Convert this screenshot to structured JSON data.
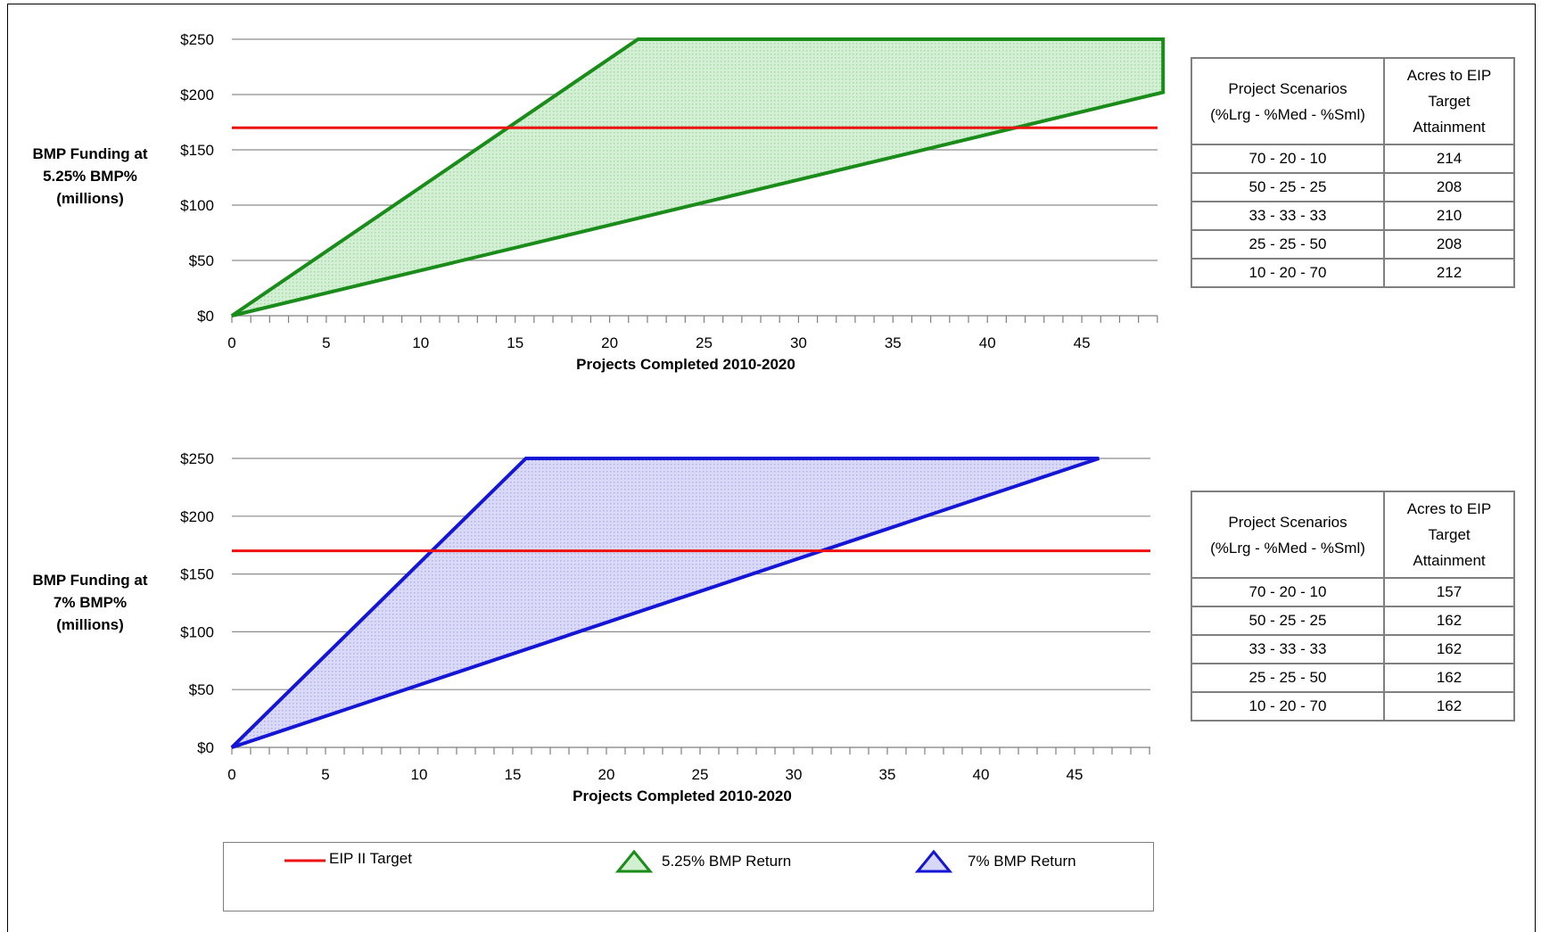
{
  "chart_data": [
    {
      "type": "area",
      "ylabel_lines": [
        "BMP Funding at",
        "5.25% BMP%",
        "(millions)"
      ],
      "xlabel": "Projects Completed 2010-2020",
      "y_ticks": [
        "$0",
        "$50",
        "$100",
        "$150",
        "$200",
        "$250"
      ],
      "x_ticks": [
        "0",
        "5",
        "10",
        "15",
        "20",
        "25",
        "30",
        "35",
        "40",
        "45"
      ],
      "ylim": [
        0,
        250
      ],
      "xlim": [
        0,
        49
      ],
      "grid": true,
      "series": [
        {
          "name": "5.25% BMP Return",
          "color": "#1a8c1a",
          "fill": "#d2efd2",
          "polygon": [
            [
              0,
              0
            ],
            [
              21.5,
              250
            ],
            [
              49.3,
              250
            ],
            [
              49.3,
              202
            ],
            [
              0,
              0
            ]
          ]
        },
        {
          "name": "EIP II Target",
          "color": "#ee1111",
          "y": 170
        }
      ],
      "table": {
        "headers": [
          "Project Scenarios (%Lrg - %Med - %Sml)",
          "Acres to EIP Target Attainment"
        ],
        "rows": [
          [
            "70 - 20 - 10",
            "214"
          ],
          [
            "50 - 25 - 25",
            "208"
          ],
          [
            "33 - 33 - 33",
            "210"
          ],
          [
            "25 - 25 - 50",
            "208"
          ],
          [
            "10 - 20 - 70",
            "212"
          ]
        ]
      }
    },
    {
      "type": "area",
      "ylabel_lines": [
        "BMP Funding at",
        "7% BMP%",
        "(millions)"
      ],
      "xlabel": "Projects Completed 2010-2020",
      "y_ticks": [
        "$0",
        "$50",
        "$100",
        "$150",
        "$200",
        "$250"
      ],
      "x_ticks": [
        "0",
        "5",
        "10",
        "15",
        "20",
        "25",
        "30",
        "35",
        "40",
        "45"
      ],
      "ylim": [
        0,
        250
      ],
      "xlim": [
        0,
        49
      ],
      "grid": true,
      "series": [
        {
          "name": "7% BMP Return",
          "color": "#1515d6",
          "fill": "#d7d7f7",
          "polygon": [
            [
              0,
              0
            ],
            [
              15.7,
              250
            ],
            [
              46.3,
              250
            ],
            [
              0,
              0
            ]
          ]
        },
        {
          "name": "EIP II Target",
          "color": "#ee1111",
          "y": 170
        }
      ],
      "table": {
        "headers": [
          "Project Scenarios (%Lrg - %Med - %Sml)",
          "Acres to EIP Target Attainment"
        ],
        "rows": [
          [
            "70 - 20 - 10",
            "157"
          ],
          [
            "50 - 25 - 25",
            "162"
          ],
          [
            "33 - 33 - 33",
            "162"
          ],
          [
            "25 - 25 - 50",
            "162"
          ],
          [
            "10 - 20 - 70",
            "162"
          ]
        ]
      }
    }
  ],
  "tables": [
    {
      "header_1_lines": [
        "Project Scenarios",
        "(%Lrg - %Med - %Sml)"
      ],
      "header_2_lines": [
        "Acres to EIP",
        "Target",
        "Attainment"
      ],
      "rows": [
        [
          "70 - 20 - 10",
          "214"
        ],
        [
          "50 - 25 - 25",
          "208"
        ],
        [
          "33 - 33 - 33",
          "210"
        ],
        [
          "25 - 25 - 50",
          "208"
        ],
        [
          "10 - 20 - 70",
          "212"
        ]
      ]
    },
    {
      "header_1_lines": [
        "Project Scenarios",
        "(%Lrg - %Med - %Sml)"
      ],
      "header_2_lines": [
        "Acres to EIP",
        "Target",
        "Attainment"
      ],
      "rows": [
        [
          "70 - 20 - 10",
          "157"
        ],
        [
          "50 - 25 - 25",
          "162"
        ],
        [
          "33 - 33 - 33",
          "162"
        ],
        [
          "25 - 25 - 50",
          "162"
        ],
        [
          "10 - 20 - 70",
          "162"
        ]
      ]
    }
  ],
  "legend": {
    "placement": "bottom",
    "items": [
      {
        "label": "EIP II Target",
        "color": "#ee1111",
        "icon": "line-swatch"
      },
      {
        "label": "5.25% BMP Return",
        "color": "#1a8c1a",
        "icon": "green-triangle-icon"
      },
      {
        "label": "7% BMP Return",
        "color": "#1515d6",
        "icon": "blue-triangle-icon"
      }
    ]
  }
}
